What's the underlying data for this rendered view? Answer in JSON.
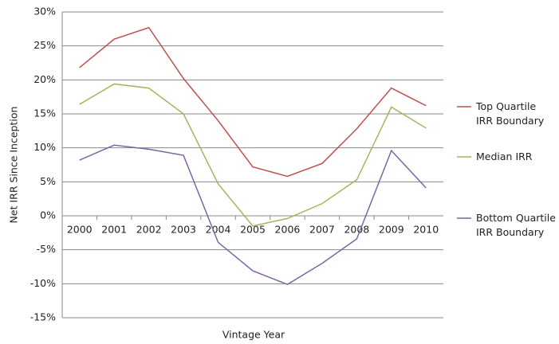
{
  "chart_data": {
    "type": "line",
    "x_label": "Vintage Year",
    "y_label": "Net IRR Since Inception",
    "categories": [
      "2000",
      "2001",
      "2002",
      "2003",
      "2004",
      "2005",
      "2006",
      "2007",
      "2008",
      "2009",
      "2010"
    ],
    "series": [
      {
        "name": "Top Quartile IRR Boundary",
        "color": "#c0504d",
        "values": [
          21.8,
          26.0,
          27.7,
          20.2,
          14.0,
          7.2,
          5.8,
          7.7,
          12.8,
          18.8,
          16.2
        ]
      },
      {
        "name": "Median IRR",
        "color": "#9bbb59",
        "values": [
          16.4,
          19.4,
          18.8,
          15.0,
          4.7,
          -1.5,
          -0.4,
          1.8,
          5.3,
          16.0,
          12.9
        ]
      },
      {
        "name": "Bottom Quartile IRR Boundary",
        "color": "#8064a2",
        "values": [
          8.2,
          10.4,
          9.8,
          8.9,
          -3.9,
          -8.1,
          -10.1,
          -7.0,
          -3.4,
          9.6,
          4.1
        ]
      }
    ],
    "ylim": [
      -15,
      30
    ],
    "yticks": [
      {
        "value": -15,
        "label": "-15%"
      },
      {
        "value": -10,
        "label": "-10%"
      },
      {
        "value": -5,
        "label": "-5%"
      },
      {
        "value": 0,
        "label": "0%"
      },
      {
        "value": 5,
        "label": "5%"
      },
      {
        "value": 10,
        "label": "10%"
      },
      {
        "value": 15,
        "label": "15%"
      },
      {
        "value": 20,
        "label": "20%"
      },
      {
        "value": 25,
        "label": "25%"
      },
      {
        "value": 30,
        "label": "30%"
      }
    ],
    "grid": true
  }
}
